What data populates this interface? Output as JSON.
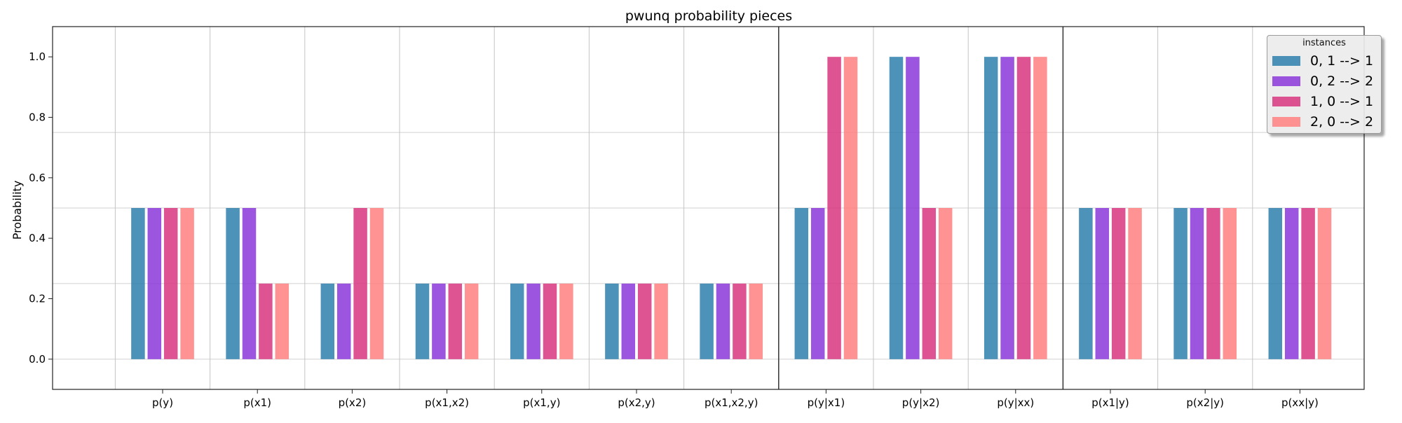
{
  "chart_data": {
    "type": "bar",
    "title": "pwunq probability pieces",
    "xlabel": "",
    "ylabel": "Probability",
    "ylim": [
      -0.1,
      1.1
    ],
    "yticks": [
      "0.0",
      "0.2",
      "0.4",
      "0.6",
      "0.8",
      "1.0"
    ],
    "categories": [
      "p(y)",
      "p(x1)",
      "p(x2)",
      "p(x1,x2)",
      "p(x1,y)",
      "p(x2,y)",
      "p(x1,x2,y)",
      "p(y|x1)",
      "p(y|x2)",
      "p(y|xx)",
      "p(x1|y)",
      "p(x2|y)",
      "p(xx|y)"
    ],
    "series": [
      {
        "name": "0, 1 --> 1",
        "color": "#2e7fab",
        "values": [
          0.5,
          0.5,
          0.25,
          0.25,
          0.25,
          0.25,
          0.25,
          0.5,
          1.0,
          1.0,
          0.5,
          0.5,
          0.5
        ]
      },
      {
        "name": "0, 2 --> 2",
        "color": "#8a37d8",
        "values": [
          0.5,
          0.5,
          0.25,
          0.25,
          0.25,
          0.25,
          0.25,
          0.5,
          1.0,
          1.0,
          0.5,
          0.5,
          0.5
        ]
      },
      {
        "name": "1, 0 --> 1",
        "color": "#d8367f",
        "values": [
          0.5,
          0.25,
          0.5,
          0.25,
          0.25,
          0.25,
          0.25,
          1.0,
          0.5,
          1.0,
          0.5,
          0.5,
          0.5
        ]
      },
      {
        "name": "2, 0 --> 2",
        "color": "#ff7f7f",
        "values": [
          0.5,
          0.25,
          0.5,
          0.25,
          0.25,
          0.25,
          0.25,
          1.0,
          0.5,
          1.0,
          0.5,
          0.5,
          0.5
        ]
      }
    ],
    "horizontal_lines": [
      0.0,
      0.25,
      0.5,
      0.75
    ],
    "section_dividers_after": [
      6,
      9
    ],
    "grid": true,
    "legend": {
      "title": "instances",
      "placement": "top-right"
    }
  }
}
